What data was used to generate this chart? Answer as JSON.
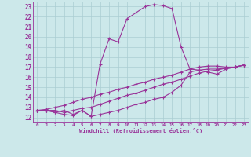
{
  "xlabel": "Windchill (Refroidissement éolien,°C)",
  "xlim": [
    -0.5,
    23.5
  ],
  "ylim": [
    11.5,
    23.5
  ],
  "yticks": [
    12,
    13,
    14,
    15,
    16,
    17,
    18,
    19,
    20,
    21,
    22,
    23
  ],
  "xticks": [
    0,
    1,
    2,
    3,
    4,
    5,
    6,
    7,
    8,
    9,
    10,
    11,
    12,
    13,
    14,
    15,
    16,
    17,
    18,
    19,
    20,
    21,
    22,
    23
  ],
  "bg_color": "#cce8ea",
  "grid_color": "#aacdd2",
  "line_color": "#993399",
  "line_width": 0.8,
  "marker": "+",
  "marker_size": 3,
  "lines": [
    [
      12.7,
      12.7,
      12.5,
      12.7,
      12.3,
      12.7,
      12.1,
      17.3,
      19.8,
      19.5,
      21.8,
      22.4,
      23.0,
      23.2,
      23.1,
      22.8,
      19.0,
      16.8,
      16.7,
      16.5,
      16.3,
      16.8,
      17.0,
      17.2
    ],
    [
      12.7,
      12.7,
      12.5,
      12.3,
      12.2,
      12.7,
      12.1,
      12.3,
      12.5,
      12.7,
      13.0,
      13.3,
      13.5,
      13.8,
      14.0,
      14.5,
      15.2,
      16.5,
      16.7,
      16.8,
      16.8,
      16.9,
      17.0,
      17.2
    ],
    [
      12.7,
      12.7,
      12.7,
      12.5,
      12.7,
      12.9,
      13.0,
      13.3,
      13.6,
      13.9,
      14.2,
      14.4,
      14.7,
      15.0,
      15.3,
      15.5,
      15.8,
      16.1,
      16.4,
      16.6,
      16.7,
      16.9,
      17.0,
      17.2
    ],
    [
      12.7,
      12.8,
      13.0,
      13.2,
      13.5,
      13.8,
      14.0,
      14.3,
      14.5,
      14.8,
      15.0,
      15.3,
      15.5,
      15.8,
      16.0,
      16.2,
      16.5,
      16.8,
      17.0,
      17.1,
      17.1,
      17.0,
      17.0,
      17.2
    ]
  ]
}
